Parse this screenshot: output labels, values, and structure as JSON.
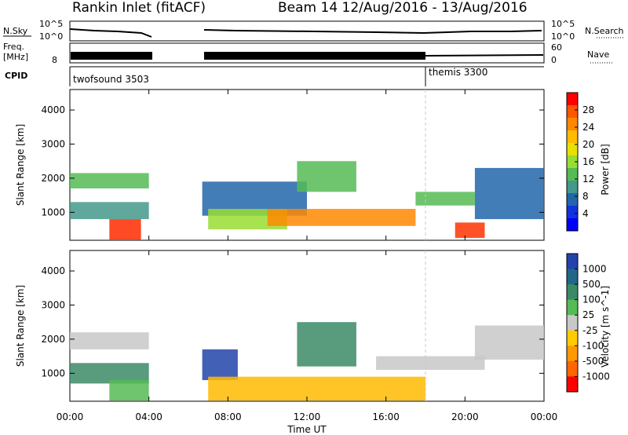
{
  "header": {
    "title": "Rankin Inlet (fitACF)",
    "beam_info": "Beam 14 12/Aug/2016 - 13/Aug/2016"
  },
  "panels": {
    "nsky_label": "N.Sky",
    "nsearch_label": "N.Search",
    "nsky_ticks": [
      "10^5",
      "10^0"
    ],
    "nsearch_ticks": [
      "10^5",
      "10^0"
    ],
    "freq_label_1": "Freq.",
    "freq_label_2": "[MHz]",
    "freq_ticks": [
      "8"
    ],
    "nave_label": "Nave",
    "nave_ticks": [
      "60",
      "0"
    ],
    "cpid_label": "CPID",
    "cpid_segments": [
      {
        "label": "twofsound 3503",
        "start_hour": 0
      },
      {
        "label": "themis 3300",
        "start_hour": 18
      }
    ]
  },
  "chart_data": [
    {
      "type": "heatmap",
      "name": "power",
      "ylabel": "Slant Range [km]",
      "xlabel": "Time UT",
      "xlim": [
        0,
        24
      ],
      "ylim": [
        180,
        4600
      ],
      "yticks": [
        "4000",
        "3000",
        "2000",
        "1000"
      ],
      "xticks": [
        "00:00",
        "04:00",
        "08:00",
        "12:00",
        "16:00",
        "20:00",
        "00:00"
      ],
      "colorbar_label": "Power [dB]",
      "colorbar_ticks": [
        "28",
        "24",
        "20",
        "16",
        "12",
        "8",
        "4"
      ],
      "colorbar_colors": [
        "#ff0000",
        "#ff5500",
        "#ff8800",
        "#ffbb00",
        "#e8e000",
        "#99dd33",
        "#55bb55",
        "#44998a",
        "#2266aa",
        "#1133dd",
        "#0000ff"
      ],
      "data_gaps_hours": [
        [
          4.1,
          6.7
        ]
      ],
      "region_blocks": [
        {
          "t0": 0.0,
          "t1": 4.0,
          "r0": 1700,
          "r1": 2150,
          "color": "#55bb55"
        },
        {
          "t0": 0.0,
          "t1": 4.0,
          "r0": 800,
          "r1": 1300,
          "color": "#44998a"
        },
        {
          "t0": 2.0,
          "t1": 3.6,
          "r0": 200,
          "r1": 800,
          "color": "#ff2a00"
        },
        {
          "t0": 6.7,
          "t1": 12.0,
          "r0": 900,
          "r1": 1900,
          "color": "#2266aa"
        },
        {
          "t0": 7.0,
          "t1": 11.0,
          "r0": 500,
          "r1": 1100,
          "color": "#99dd33"
        },
        {
          "t0": 10.0,
          "t1": 17.5,
          "r0": 600,
          "r1": 1100,
          "color": "#ff8800"
        },
        {
          "t0": 11.5,
          "t1": 14.5,
          "r0": 1600,
          "r1": 2500,
          "color": "#55bb55"
        },
        {
          "t0": 17.5,
          "t1": 20.5,
          "r0": 1200,
          "r1": 1600,
          "color": "#55bb55"
        },
        {
          "t0": 19.5,
          "t1": 21.0,
          "r0": 250,
          "r1": 700,
          "color": "#ff3300"
        },
        {
          "t0": 20.5,
          "t1": 24.0,
          "r0": 800,
          "r1": 2300,
          "color": "#2266aa"
        }
      ]
    },
    {
      "type": "heatmap",
      "name": "velocity",
      "ylabel": "Slant Range [km]",
      "xlabel": "Time UT",
      "xlim": [
        0,
        24
      ],
      "ylim": [
        180,
        4600
      ],
      "yticks": [
        "4000",
        "3000",
        "2000",
        "1000"
      ],
      "xticks": [
        "00:00",
        "04:00",
        "08:00",
        "12:00",
        "16:00",
        "20:00",
        "00:00"
      ],
      "colorbar_label": "Velocity [m s^-1]",
      "colorbar_ticks": [
        "1000",
        "500",
        "100",
        "25",
        "-25",
        "-100",
        "-500",
        "-1000"
      ],
      "colorbar_colors": [
        "#2244aa",
        "#226688",
        "#3b8a66",
        "#55bb55",
        "#c8c8c8",
        "#ffcc00",
        "#ff9900",
        "#ff6600",
        "#ff0000"
      ],
      "data_gaps_hours": [
        [
          4.1,
          6.7
        ]
      ],
      "region_blocks": [
        {
          "t0": 0.0,
          "t1": 4.0,
          "r0": 1700,
          "r1": 2200,
          "color": "#c8c8c8"
        },
        {
          "t0": 0.0,
          "t1": 4.0,
          "r0": 700,
          "r1": 1300,
          "color": "#3b8a66"
        },
        {
          "t0": 2.0,
          "t1": 4.0,
          "r0": 200,
          "r1": 800,
          "color": "#55bb55"
        },
        {
          "t0": 6.7,
          "t1": 8.5,
          "r0": 800,
          "r1": 1700,
          "color": "#2244aa"
        },
        {
          "t0": 7.0,
          "t1": 18.0,
          "r0": 200,
          "r1": 900,
          "color": "#ffbb00"
        },
        {
          "t0": 11.5,
          "t1": 14.5,
          "r0": 1200,
          "r1": 2500,
          "color": "#3b8a66"
        },
        {
          "t0": 15.5,
          "t1": 21.0,
          "r0": 1100,
          "r1": 1500,
          "color": "#c8c8c8"
        },
        {
          "t0": 20.5,
          "t1": 24.0,
          "r0": 1400,
          "r1": 2400,
          "color": "#c8c8c8"
        }
      ]
    }
  ]
}
